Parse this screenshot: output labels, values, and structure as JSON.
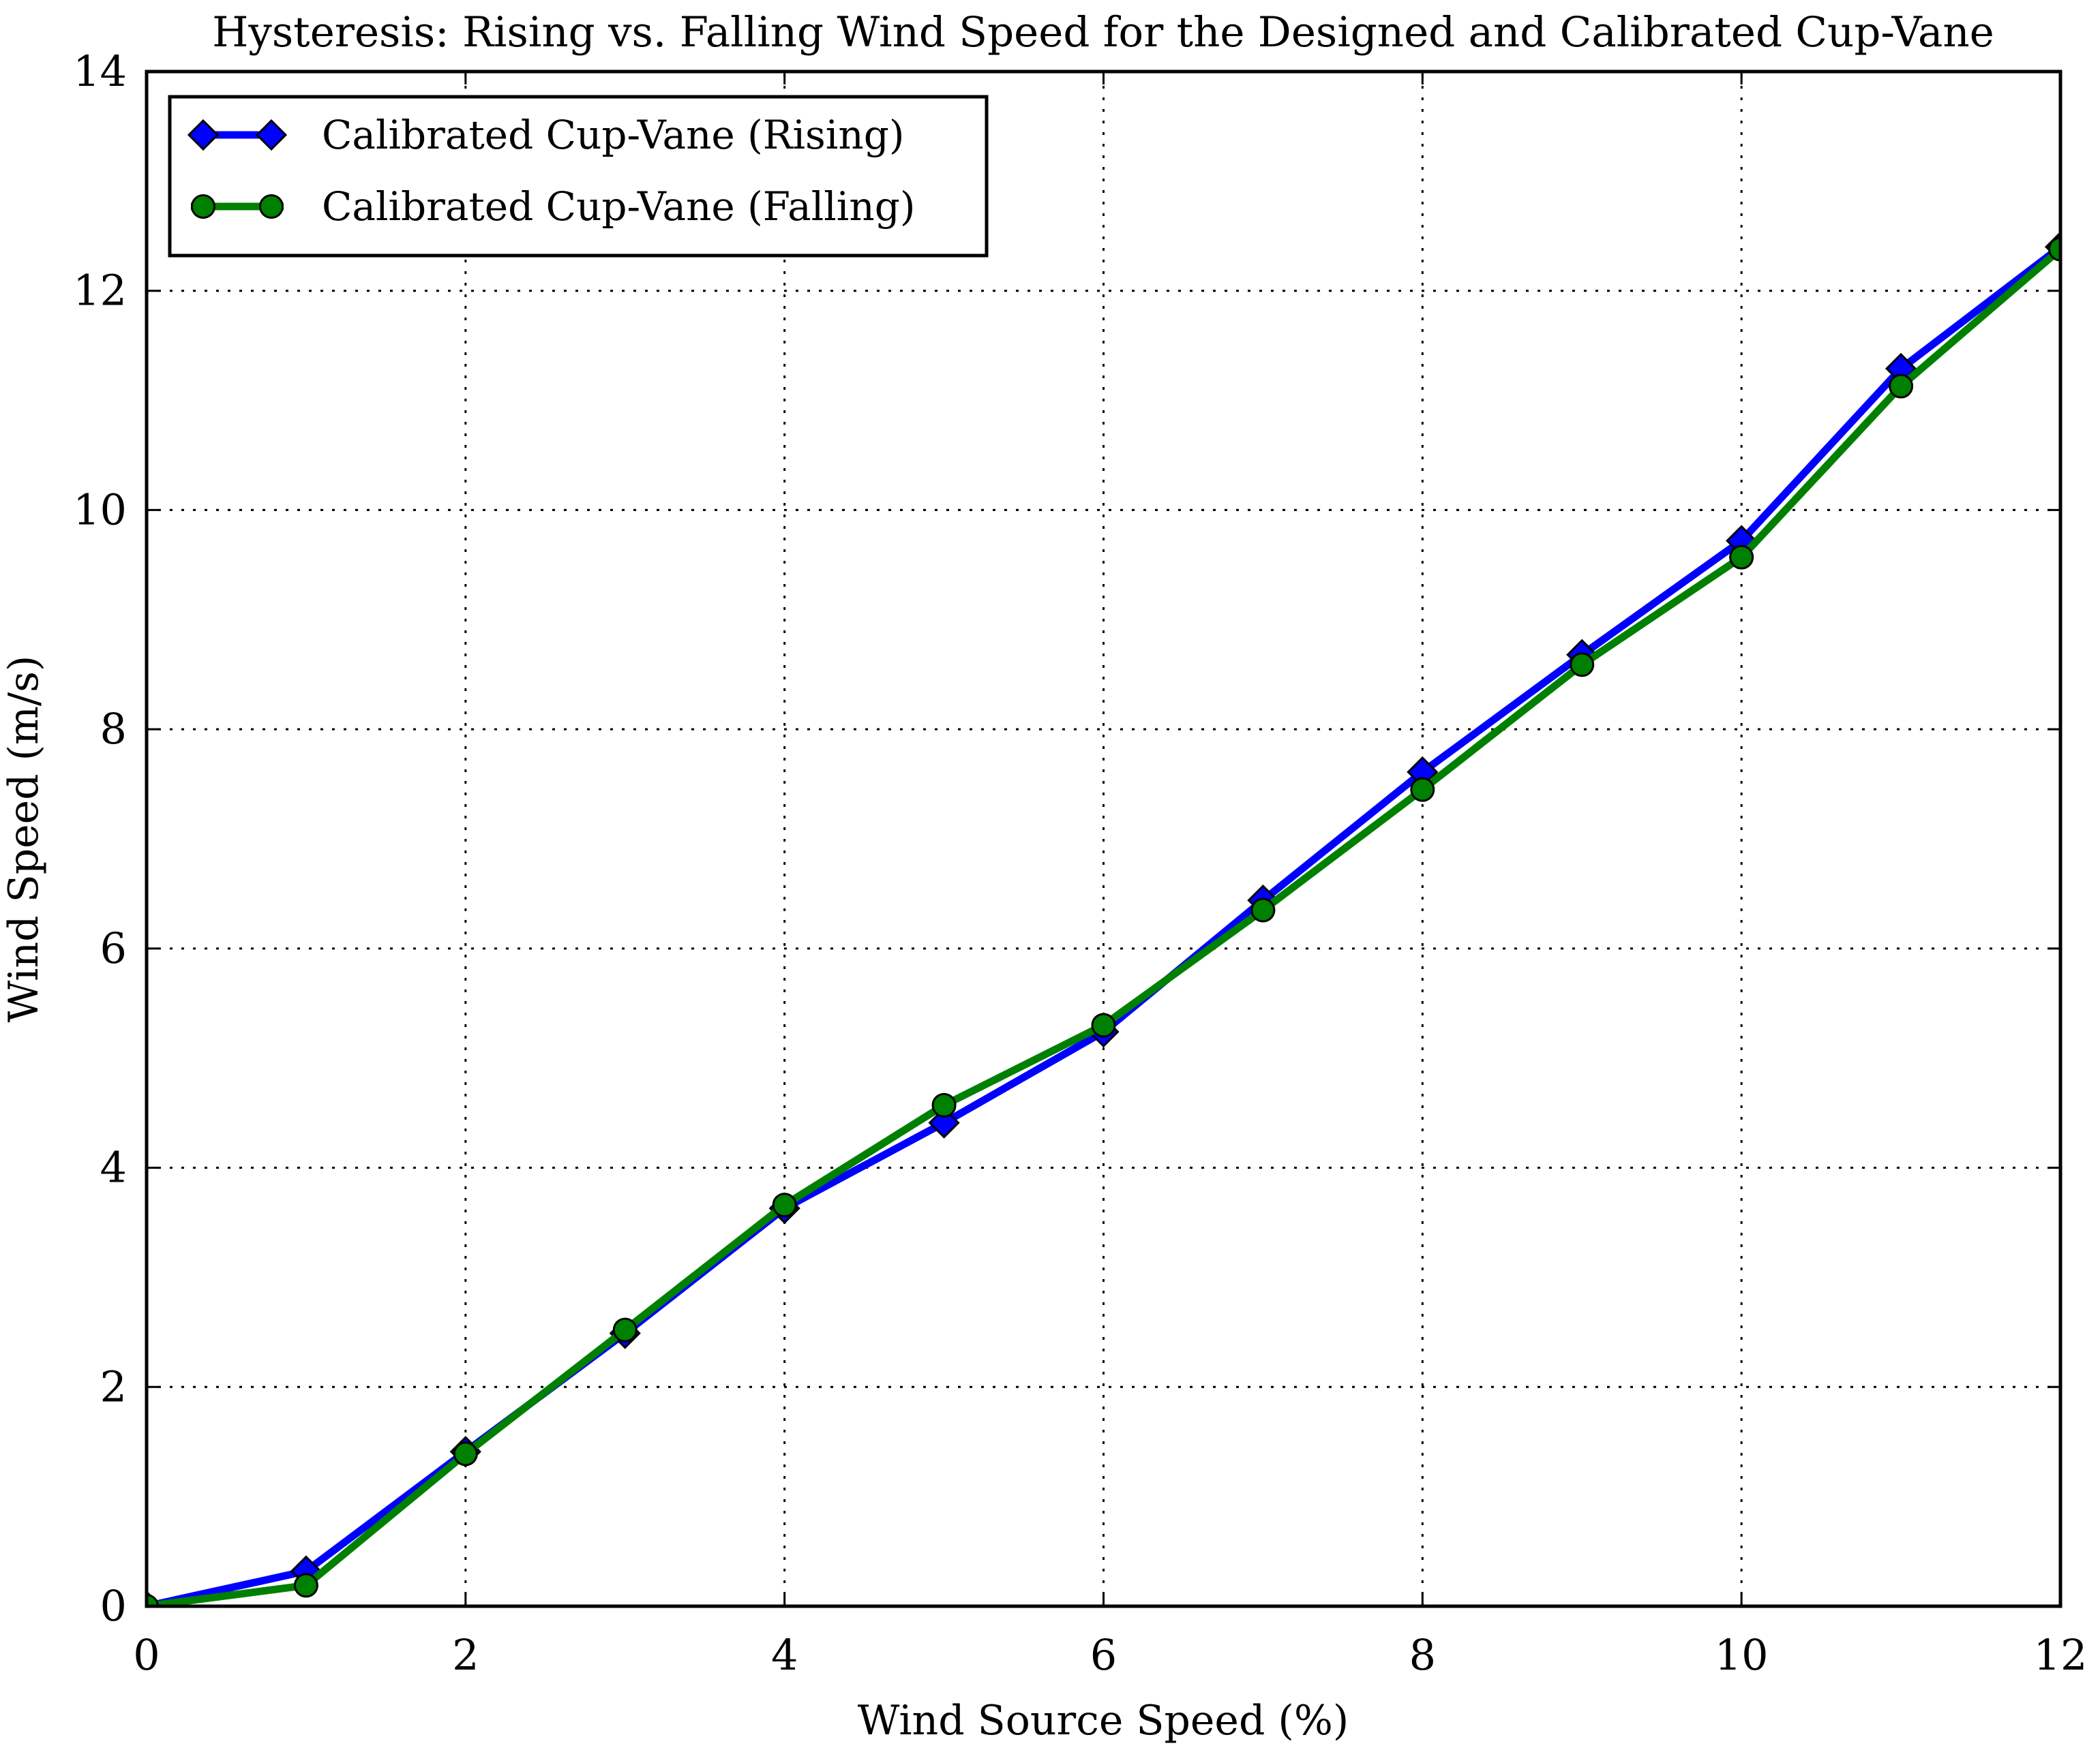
{
  "chart_data": {
    "type": "line",
    "title": "Hysteresis: Rising vs. Falling Wind Speed for the Designed and Calibrated Cup-Vane",
    "xlabel": "Wind Source Speed (%)",
    "ylabel": "Wind Speed (m/s)",
    "xlim": [
      0,
      12
    ],
    "ylim": [
      0,
      14
    ],
    "x_ticks": [
      0,
      2,
      4,
      6,
      8,
      10,
      12
    ],
    "y_ticks": [
      0,
      2,
      4,
      6,
      8,
      10,
      12,
      14
    ],
    "grid": "dotted black",
    "legend_position": "upper left",
    "x": [
      0,
      1,
      2,
      3,
      4,
      5,
      6,
      7,
      8,
      9,
      10,
      11,
      12
    ],
    "series": [
      {
        "name": "Calibrated Cup-Vane (Rising)",
        "color": "#0000ff",
        "marker": "diamond",
        "values": [
          0.0,
          0.32,
          1.41,
          2.49,
          3.63,
          4.41,
          5.24,
          6.44,
          7.61,
          8.68,
          9.72,
          11.29,
          12.4
        ]
      },
      {
        "name": "Calibrated Cup-Vane (Falling)",
        "color": "#008000",
        "marker": "circle",
        "values": [
          0.0,
          0.19,
          1.39,
          2.52,
          3.66,
          4.57,
          5.3,
          6.35,
          7.45,
          8.59,
          9.57,
          11.13,
          12.38
        ]
      }
    ]
  }
}
